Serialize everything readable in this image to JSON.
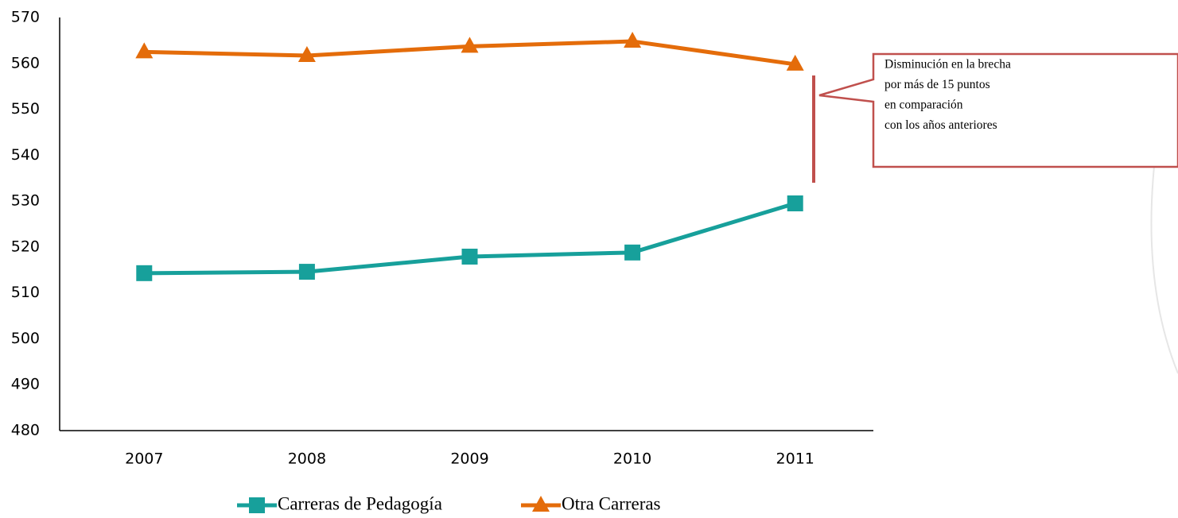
{
  "chart_data": {
    "type": "line",
    "categories": [
      "2007",
      "2008",
      "2009",
      "2010",
      "2011"
    ],
    "series": [
      {
        "name": "Carreras de Pedagogía",
        "color": "#17a09b",
        "marker": "square",
        "values": [
          514.3,
          514.6,
          517.9,
          518.8,
          529.5
        ]
      },
      {
        "name": "Otra Carreras",
        "color": "#e46c0a",
        "marker": "triangle",
        "values": [
          562.5,
          561.7,
          563.7,
          564.8,
          559.8
        ]
      }
    ],
    "ylim": [
      480,
      570
    ],
    "yticks": [
      480,
      490,
      500,
      510,
      520,
      530,
      540,
      550,
      560,
      570
    ],
    "grid": false,
    "legend": "bottom",
    "annotation": [
      "Disminución en la brecha",
      "por más de 15 puntos",
      "en comparación",
      "con los años anteriores"
    ]
  }
}
